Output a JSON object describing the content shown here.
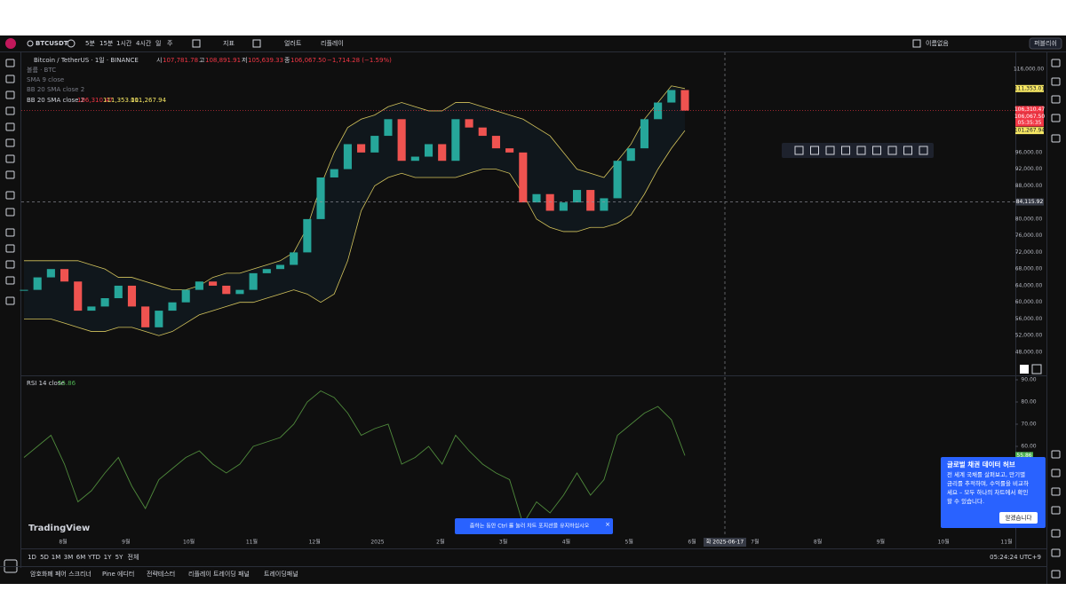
{
  "top_toolbar": {
    "symbol": "BTCUSDT",
    "intervals": [
      "5분",
      "15분",
      "1시간",
      "4시간",
      "일",
      "주"
    ],
    "indicators": "지표",
    "alert": "얼러트",
    "replay": "리플레이",
    "layout_name": "이름없음",
    "publish": "퍼블리쉬"
  },
  "legend": {
    "symbol": "Bitcoin / TetherUS · 1일 · BINANCE",
    "ohlc": [
      {
        "label": "시",
        "value": "107,781.78"
      },
      {
        "label": "고",
        "value": "108,891.91"
      },
      {
        "label": "저",
        "value": "105,639.33"
      },
      {
        "label": "종",
        "value": "106,067.50"
      }
    ],
    "change": "−1,714.28 (−1.59%)",
    "volume": "볼륨 · BTC",
    "sma": "SMA 9 close",
    "bb_hidden": "BB 20 SMA close 2",
    "bb": "BB 20 SMA close 2",
    "bb_values": [
      "106,310.47",
      "111,353.01",
      "101,267.94"
    ]
  },
  "price_chart": {
    "type": "candlestick",
    "up_color": "#26a69a",
    "down_color": "#ef5350",
    "band_color": "#d4c45c",
    "close": [
      63000,
      66000,
      68000,
      65000,
      58000,
      59000,
      61000,
      64000,
      59000,
      54000,
      58000,
      60000,
      63000,
      65000,
      64000,
      62000,
      63000,
      67000,
      68000,
      69000,
      72000,
      80000,
      90000,
      92000,
      98000,
      96000,
      100000,
      104000,
      94000,
      95000,
      98000,
      94000,
      104000,
      102000,
      100000,
      97000,
      96000,
      84000,
      86000,
      82000,
      84000,
      87000,
      82000,
      85000,
      94000,
      97000,
      104000,
      108000,
      111000,
      106067.5
    ],
    "bb_upper": [
      70000,
      70000,
      70000,
      70000,
      70000,
      69000,
      68000,
      66000,
      66000,
      65000,
      64000,
      63000,
      63000,
      64000,
      66000,
      67000,
      67000,
      68000,
      69000,
      70000,
      72000,
      78000,
      88000,
      96000,
      102000,
      104000,
      105000,
      107000,
      108000,
      107000,
      106000,
      106000,
      108000,
      108000,
      107000,
      106000,
      105000,
      104000,
      102000,
      100000,
      96000,
      92000,
      91000,
      90000,
      94000,
      98000,
      104000,
      108000,
      112000,
      111353.01
    ],
    "bb_lower": [
      56000,
      56000,
      56000,
      55000,
      54000,
      53000,
      53000,
      54000,
      54000,
      53000,
      52000,
      53000,
      55000,
      57000,
      58000,
      59000,
      60000,
      60000,
      61000,
      62000,
      63000,
      62000,
      60000,
      62000,
      70000,
      82000,
      88000,
      90000,
      91000,
      90000,
      90000,
      90000,
      90000,
      91000,
      92000,
      92000,
      91000,
      86000,
      80000,
      78000,
      77000,
      77000,
      78000,
      78000,
      79000,
      81000,
      86000,
      92000,
      97000,
      101267.94
    ],
    "ylim": [
      42670,
      119840
    ],
    "yticks": [
      {
        "value": 116000,
        "label": "116,000.00"
      },
      {
        "value": 96000,
        "label": "96,000.00"
      },
      {
        "value": 92000,
        "label": "92,000.00"
      },
      {
        "value": 88000,
        "label": "88,000.00"
      },
      {
        "value": 80000,
        "label": "80,000.00"
      },
      {
        "value": 76000,
        "label": "76,000.00"
      },
      {
        "value": 72000,
        "label": "72,000.00"
      },
      {
        "value": 68000,
        "label": "68,000.00"
      },
      {
        "value": 64000,
        "label": "64,000.00"
      },
      {
        "value": 60000,
        "label": "60,000.00"
      },
      {
        "value": 56000,
        "label": "56,000.00"
      },
      {
        "value": 52000,
        "label": "52,000.00"
      },
      {
        "value": 48000,
        "label": "48,000.00"
      }
    ],
    "price_tags": [
      {
        "value": 111353.01,
        "label": "111,353.01",
        "color": "#f5e663"
      },
      {
        "value": 106310.47,
        "label": "106,310.47",
        "color": "#f23645"
      },
      {
        "value": 101267.94,
        "label": "101,267.94",
        "color": "#f5e663"
      }
    ],
    "last_price": {
      "value": 106067.5,
      "label": "106,067.50"
    },
    "countdown": "05:35:35",
    "crosshair": {
      "value": 84115.92,
      "label": "84,115.92"
    },
    "crosshair_date": "화 2025-06-17"
  },
  "rsi_chart": {
    "type": "line",
    "title": "RSI 14 close",
    "color": "#4f8a3c",
    "values": [
      55,
      60,
      65,
      52,
      35,
      40,
      48,
      55,
      42,
      32,
      45,
      50,
      55,
      58,
      52,
      48,
      52,
      60,
      62,
      64,
      70,
      80,
      85,
      82,
      75,
      65,
      68,
      70,
      52,
      55,
      60,
      52,
      65,
      58,
      52,
      48,
      45,
      25,
      35,
      30,
      38,
      48,
      38,
      45,
      65,
      70,
      75,
      78,
      72,
      55.86
    ],
    "ylim": [
      91.2,
      21.2
    ],
    "yticks": [
      {
        "value": 90,
        "label": "90.00"
      },
      {
        "value": 80,
        "label": "80.00"
      },
      {
        "value": 70,
        "label": "70.00"
      },
      {
        "value": 60,
        "label": "60.00"
      }
    ]
  },
  "time_axis": [
    "8월",
    "9월",
    "10월",
    "11월",
    "12월",
    "2025",
    "2월",
    "3월",
    "4월",
    "5월",
    "6월",
    "7월",
    "8월",
    "9월",
    "10월",
    "11월"
  ],
  "logo": "TradingView",
  "bottom_bar": {
    "ranges": [
      "1D",
      "5D",
      "1M",
      "3M",
      "6M",
      "YTD",
      "1Y",
      "5Y",
      "전체"
    ],
    "clock": "05:24:24 UTC+9"
  },
  "tabs": [
    "암호화폐 페어 스크리너",
    "Pine 에디터",
    "전략테스터",
    "리플레이 트레이딩 패널",
    "트레이딩패널"
  ],
  "toast": "줌하는 동안 Ctrl 를 눌러 차트 포지션을 유지하십시오",
  "popup": {
    "title": "글로벌 채권 데이터 허브",
    "body": [
      "전 세계 국채를 살펴보고, 만기별",
      "금리를 추적하며, 수익률을 비교하",
      "세요 – 모두 하나의 차트에서 확인",
      "할 수 있습니다."
    ],
    "button": "알겠습니다"
  }
}
